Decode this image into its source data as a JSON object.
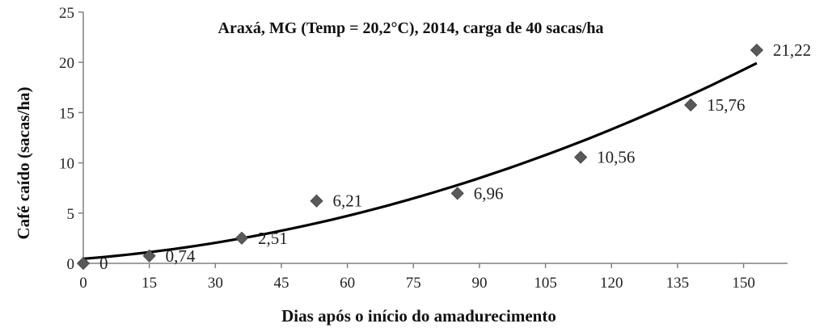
{
  "chart_data": {
    "type": "scatter",
    "title": "Araxá, MG (Temp = 20,2°C), 2014, carga de 40 sacas/ha",
    "xlabel": "Dias após o início do amadurecimento",
    "ylabel": "Café caído (sacas/ha)",
    "xlim": [
      0,
      160
    ],
    "ylim": [
      0,
      25
    ],
    "xticks": [
      0,
      15,
      30,
      45,
      60,
      75,
      90,
      105,
      120,
      135,
      150
    ],
    "yticks": [
      0,
      5,
      10,
      15,
      20,
      25
    ],
    "grid": false,
    "series": [
      {
        "marker": "diamond",
        "color": "#595959",
        "points": [
          {
            "x": 0,
            "y": 0,
            "label": "0"
          },
          {
            "x": 15,
            "y": 0.74,
            "label": "0,74"
          },
          {
            "x": 36,
            "y": 2.51,
            "label": "2,51"
          },
          {
            "x": 53,
            "y": 6.21,
            "label": "6,21"
          },
          {
            "x": 85,
            "y": 6.96,
            "label": "6,96"
          },
          {
            "x": 113,
            "y": 10.56,
            "label": "10,56"
          },
          {
            "x": 138,
            "y": 15.76,
            "label": "15,76"
          },
          {
            "x": 153,
            "y": 21.22,
            "label": "21,22"
          }
        ]
      }
    ],
    "trendline": {
      "type": "polynomial",
      "color": "#000000",
      "x_range": [
        0,
        153
      ],
      "coefficients": [
        0.45,
        0.035,
        0.000603
      ]
    }
  }
}
